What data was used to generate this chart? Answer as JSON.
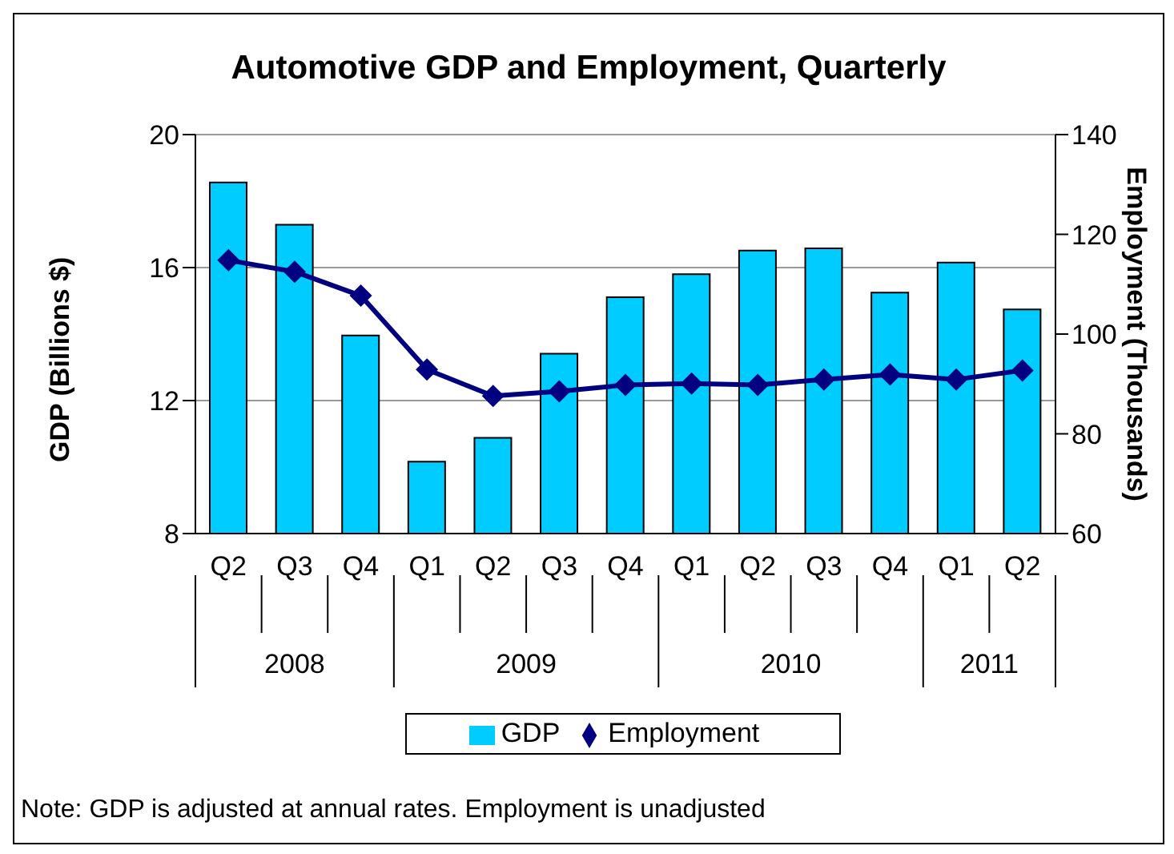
{
  "chart_data": {
    "type": "bar",
    "title": "Automotive GDP and Employment, Quarterly",
    "categories": [
      "Q2",
      "Q3",
      "Q4",
      "Q1",
      "Q2",
      "Q3",
      "Q4",
      "Q1",
      "Q2",
      "Q3",
      "Q4",
      "Q1",
      "Q2"
    ],
    "series": [
      {
        "name": "GDP",
        "color": "#00ccff",
        "values": [
          18.56,
          17.29,
          13.96,
          10.16,
          10.88,
          13.41,
          15.11,
          15.8,
          16.51,
          16.58,
          15.25,
          16.15,
          14.74
        ]
      },
      {
        "name": "Employment",
        "type": "line",
        "axis": "y2",
        "color": "#000080",
        "values": [
          114.8,
          112.5,
          107.7,
          92.9,
          87.6,
          88.5,
          89.8,
          90.1,
          89.8,
          90.9,
          91.9,
          90.9,
          92.7
        ]
      }
    ],
    "ylabel": "GDP (Billions $)",
    "y2label": "Employment (Thousands)",
    "ylim": [
      8,
      20
    ],
    "yticks": [
      8,
      12,
      16,
      20
    ],
    "y2lim": [
      60,
      140
    ],
    "y2ticks": [
      60,
      80,
      100,
      120,
      140
    ],
    "grid": "y",
    "legend": "bottom",
    "marker": "diamond",
    "line_style": "solid",
    "annotations": [
      "2008",
      "2009",
      "2010",
      "2011",
      "Note: GDP is adjusted at annual rates. Employment is unadjusted"
    ]
  }
}
